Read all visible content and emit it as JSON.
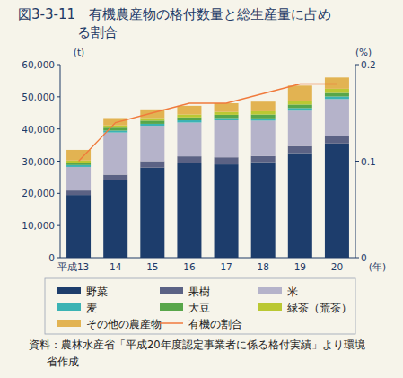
{
  "chart_data": {
    "type": "bar",
    "stacked": true,
    "title": "図3-3-11　有機農産物の格付数量と総生産量に占める割合",
    "source": "資料：農林水産省「平成20年度認定事業者に係る格付実績」より環境省作成",
    "x_label": "(年)",
    "y_label": "(t)",
    "y2_label": "(%)",
    "categories": [
      "平成13",
      "14",
      "15",
      "16",
      "17",
      "18",
      "19",
      "20"
    ],
    "ylim": [
      0,
      60000
    ],
    "yticks": [
      0,
      {
        "value": 10000,
        "label": "10,000"
      },
      {
        "value": 20000,
        "label": "20,000"
      },
      {
        "value": 30000,
        "label": "30,000"
      },
      {
        "value": 40000,
        "label": "40,000"
      },
      {
        "value": 50000,
        "label": "50,000"
      },
      {
        "value": 60000,
        "label": "60,000"
      }
    ],
    "y2lim": [
      0,
      0.2
    ],
    "y2ticks": [
      0,
      0.1,
      0.2
    ],
    "grid": false,
    "legend": "bottom",
    "series": [
      {
        "name": "野菜",
        "color": "#1d3d6c",
        "values": [
          19500,
          24000,
          28000,
          29500,
          29000,
          29700,
          32500,
          35500
        ]
      },
      {
        "name": "果樹",
        "color": "#5b6284",
        "values": [
          1400,
          1800,
          2000,
          2000,
          2200,
          1900,
          2200,
          2300
        ]
      },
      {
        "name": "米",
        "color": "#b5b3ca",
        "values": [
          7300,
          13100,
          11000,
          10500,
          11500,
          11000,
          11000,
          11500
        ]
      },
      {
        "name": "麦",
        "color": "#3bb3b4",
        "values": [
          600,
          600,
          600,
          700,
          700,
          700,
          800,
          800
        ]
      },
      {
        "name": "大豆",
        "color": "#58a64a",
        "values": [
          700,
          900,
          1000,
          900,
          1000,
          1200,
          1100,
          1100
        ]
      },
      {
        "name": "緑茶（荒茶）",
        "color": "#bac833",
        "values": [
          700,
          700,
          800,
          900,
          900,
          1000,
          1100,
          1300
        ]
      },
      {
        "name": "その他の農産物",
        "color": "#e2b352",
        "values": [
          3300,
          2300,
          2700,
          2700,
          2700,
          3000,
          4800,
          3500
        ]
      },
      {
        "name": "有機の割合",
        "color": "#f07a3c",
        "type": "line",
        "axis": "y2",
        "values": [
          0.1,
          0.14,
          0.15,
          0.16,
          0.16,
          0.17,
          0.18,
          0.18
        ]
      }
    ]
  }
}
